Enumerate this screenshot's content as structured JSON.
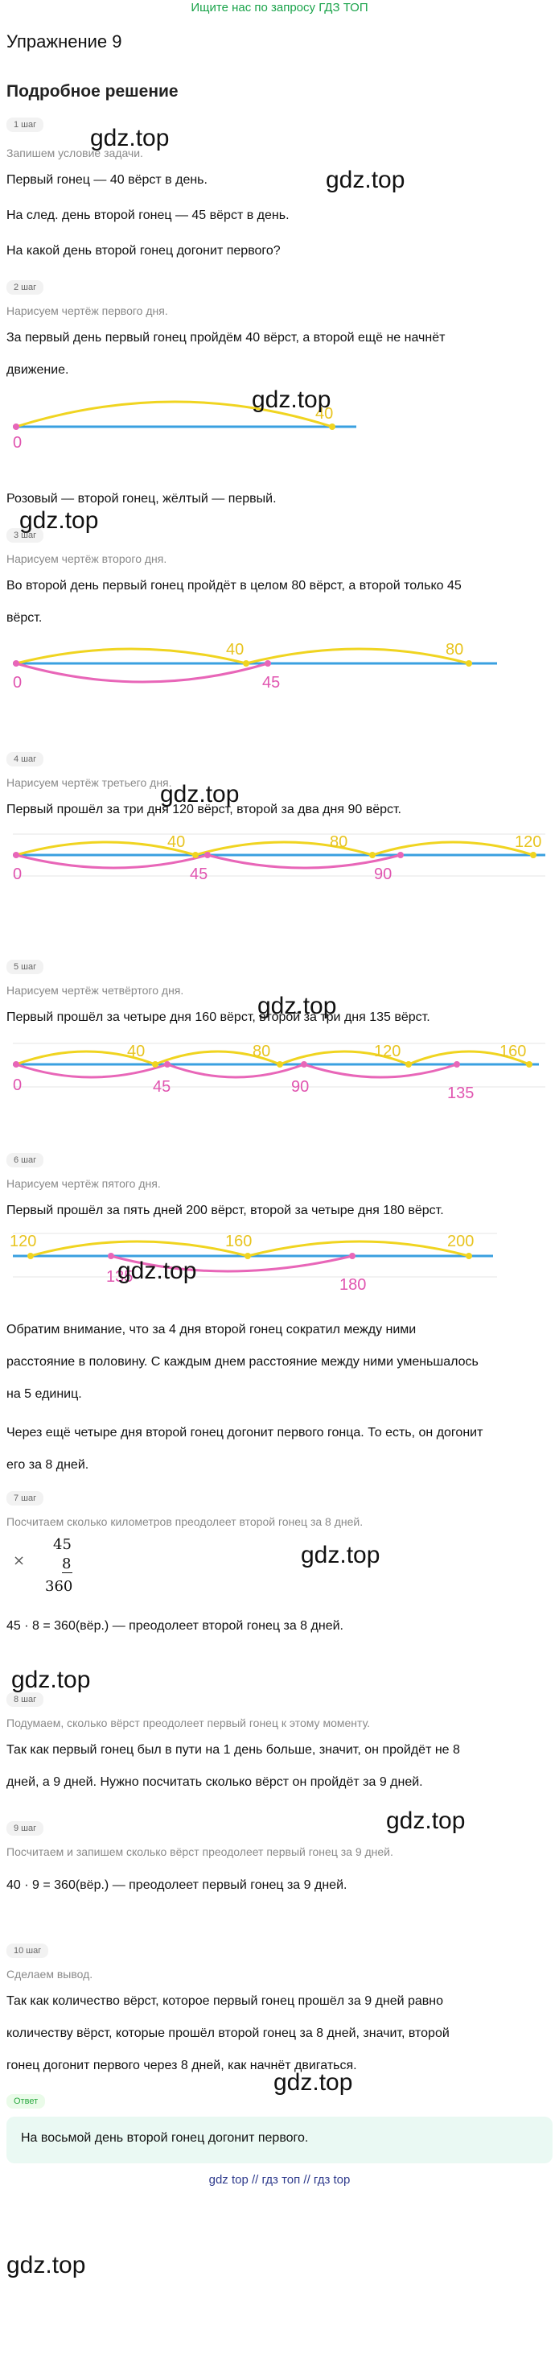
{
  "banner": "Ищите нас по запросу ГДЗ ТОП",
  "exercise_title": "Упражнение 9",
  "solution_title": "Подробное решение",
  "watermark": "gdz.top",
  "steps": [
    {
      "badge": "1 шаг",
      "note": "Запишем условие задачи.",
      "lines": [
        "Первый гонец — 40 вёрст в день.",
        "На след. день второй гонец — 45 вёрст в день.",
        "На какой день второй гонец догонит первого?"
      ]
    },
    {
      "badge": "2 шаг",
      "note": "Нарисуем чертёж первого дня.",
      "lines": [
        "За первый день первый гонец пройдём 40 вёрст, а второй ещё не начнёт",
        "движение."
      ],
      "after": "Розовый — второй гонец, жёлтый — первый."
    },
    {
      "badge": "3 шаг",
      "note": "Нарисуем чертёж второго дня.",
      "lines": [
        "Во второй день первый гонец пройдёт в целом 80 вёрст, а второй только 45",
        "вёрст."
      ]
    },
    {
      "badge": "4 шаг",
      "note": "Нарисуем чертёж третьего дня.",
      "lines": [
        "Первый прошёл за три дня 120 вёрст, второй за два дня 90 вёрст."
      ]
    },
    {
      "badge": "5 шаг",
      "note": "Нарисуем чертёж четвёртого дня.",
      "lines": [
        "Первый прошёл за четыре дня 160 вёрст, второй за три дня 135 вёрст."
      ]
    },
    {
      "badge": "6 шаг",
      "note": "Нарисуем чертёж пятого дня.",
      "lines": [
        "Первый прошёл за пять дней 200 вёрст, второй за четыре дня 180 вёрст."
      ],
      "after_lines": [
        "Обратим внимание, что за 4 дня второй гонец сократил между ними",
        "расстояние в половину. С каждым днем расстояние между ними уменьшалось",
        "на 5 единиц.",
        "Через ещё четыре дня второй гонец догонит первого гонца. То есть, он догонит",
        "его за 8 дней."
      ]
    },
    {
      "badge": "7 шаг",
      "note": "Посчитаем сколько километров преодолеет второй гонец за 8 дней.",
      "mult": {
        "sign": "×",
        "a": "45",
        "b": "8",
        "result": "360"
      },
      "lines": [
        "45 · 8 = 360(вёр.) — преодолеет второй гонец за 8 дней."
      ]
    },
    {
      "badge": "8 шаг",
      "note": "Подумаем, сколько вёрст преодолеет первый гонец к этому моменту.",
      "lines": [
        "Так как первый гонец был в пути на 1 день больше, значит, он пройдёт не 8",
        "дней, а 9 дней. Нужно посчитать сколько вёрст он пройдёт за 9 дней."
      ]
    },
    {
      "badge": "9 шаг",
      "note": "Посчитаем и запишем сколько вёрст преодолеет первый гонец за 9 дней.",
      "lines": [
        "40 · 9 = 360(вёр.) — преодолеет первый гонец за 9 дней."
      ]
    },
    {
      "badge": "10 шаг",
      "note": "Сделаем вывод.",
      "lines": [
        "Так как количество вёрст, которое первый гонец прошёл за 9 дней равно",
        "количеству вёрст, которые прошёл второй гонец за 8 дней, значит, второй",
        "гонец догонит первого через 8 дней, как начнёт двигаться."
      ]
    }
  ],
  "answer": {
    "badge": "Ответ",
    "text": "На восьмой день второй гонец догонит первого."
  },
  "footer": "gdz top  //  гдз топ  //  гдз top",
  "diagrams": {
    "d1": {
      "start": "0",
      "yellow": [
        "40"
      ]
    },
    "d2": {
      "start": "0",
      "yellow": [
        "40",
        "80"
      ],
      "pink": [
        "45"
      ]
    },
    "d3": {
      "start": "0",
      "yellow": [
        "40",
        "80",
        "120"
      ],
      "pink": [
        "45",
        "90"
      ]
    },
    "d4": {
      "start": "0",
      "yellow": [
        "40",
        "80",
        "120",
        "160"
      ],
      "pink": [
        "45",
        "90",
        "135"
      ]
    },
    "d5": {
      "yellow": [
        "120",
        "160",
        "200"
      ],
      "pink": [
        "135",
        "180"
      ]
    }
  },
  "colors": {
    "blue": "#3aa0e0",
    "yellow": "#f0d420",
    "pink": "#e866b8",
    "label_yellow": "#e8c420",
    "label_pink": "#e055b0"
  }
}
